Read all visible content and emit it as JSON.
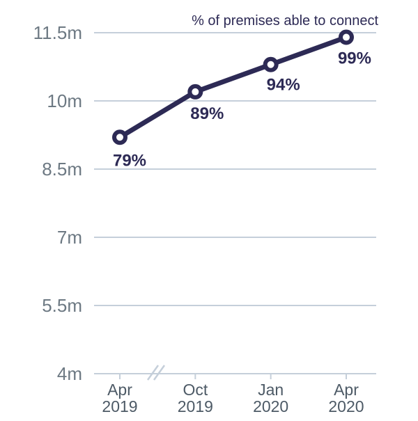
{
  "chart_data": {
    "type": "line",
    "title": "% of premises able to connect",
    "categories": [
      {
        "month": "Apr",
        "year": "2019"
      },
      {
        "month": "Oct",
        "year": "2019"
      },
      {
        "month": "Jan",
        "year": "2020"
      },
      {
        "month": "Apr",
        "year": "2020"
      }
    ],
    "values": [
      9.2,
      10.2,
      10.8,
      11.4
    ],
    "point_labels": [
      "79%",
      "89%",
      "94%",
      "99%"
    ],
    "ylabel_unit": "m",
    "yticks": [
      4,
      5.5,
      7,
      8.5,
      10,
      11.5
    ],
    "ytick_labels": [
      "4m",
      "5.5m",
      "7m",
      "8.5m",
      "10m",
      "11.5m"
    ],
    "ylim": [
      4,
      11.5
    ],
    "grid": "horizontal",
    "legend_position": "none",
    "axis_break_between": [
      "Apr 2019",
      "Oct 2019"
    ],
    "colors": {
      "line": "#2d2a55",
      "marker_fill": "#ffffff",
      "marker_stroke": "#2d2a55",
      "grid": "#c5cfda",
      "axis": "#c5cfda",
      "ytick_text": "#6d7983",
      "xtick_text": "#4d5a66",
      "point_label_text": "#2d2a55",
      "title_text": "#2d2a55"
    }
  }
}
